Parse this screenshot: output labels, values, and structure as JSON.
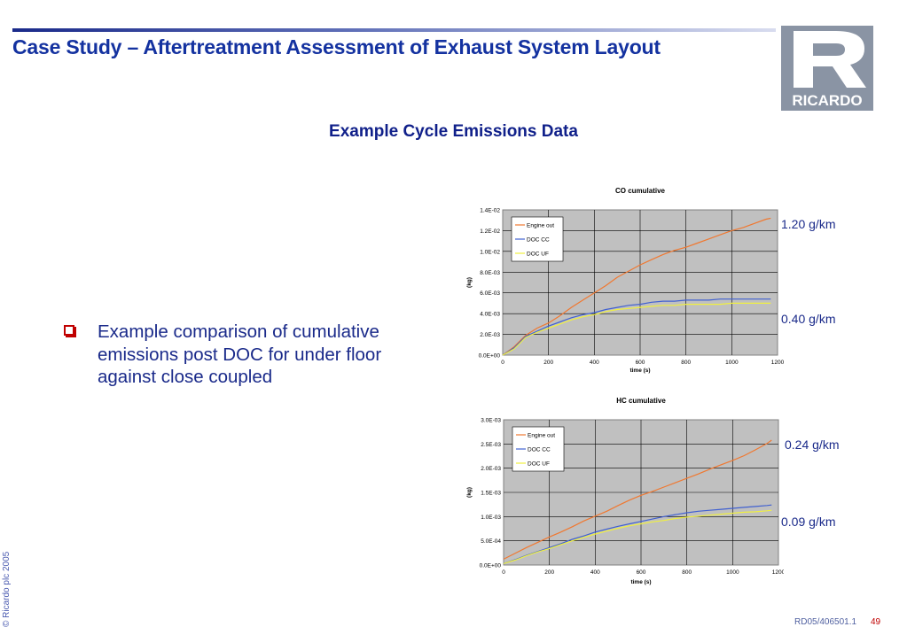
{
  "slide": {
    "title": "Case Study – Aftertreatment Assessment of Exhaust System Layout",
    "subtitle": "Example Cycle Emissions Data",
    "logo_text": "RICARDO",
    "bullet": "Example comparison of cumulative emissions post DOC for under floor against close coupled",
    "copyright": "© Ricardo plc 2005",
    "footer_ref": "RD05/406501.1",
    "page_number": "49"
  },
  "annotations": {
    "co_engine_out": "1.20 g/km",
    "co_doc": "0.40 g/km",
    "hc_engine_out": "0.24 g/km",
    "hc_doc": "0.09 g/km"
  },
  "colors": {
    "engine_out": "#f07830",
    "doc_cc": "#4060d0",
    "doc_uf": "#f0f040",
    "plot_bg": "#c0c0c0",
    "title_blue": "#1432a0",
    "bullet_red": "#c00000"
  },
  "chart_data": [
    {
      "type": "line",
      "title": "CO cumulative",
      "xlabel": "time (s)",
      "ylabel": "(kg)",
      "xlim": [
        0,
        1200
      ],
      "ylim": [
        0,
        0.014
      ],
      "x_ticks": [
        "0",
        "200",
        "400",
        "600",
        "800",
        "1000",
        "1200"
      ],
      "y_ticks": [
        "0.0E+00",
        "2.0E-03",
        "4.0E-03",
        "6.0E-03",
        "8.0E-03",
        "1.0E-02",
        "1.2E-02",
        "1.4E-02"
      ],
      "grid": true,
      "legend": "top-left",
      "series": [
        {
          "name": "Engine out",
          "x": [
            0,
            50,
            100,
            150,
            200,
            250,
            300,
            350,
            400,
            450,
            500,
            550,
            600,
            650,
            700,
            750,
            800,
            850,
            900,
            950,
            1000,
            1050,
            1100,
            1150,
            1170
          ],
          "y": [
            0,
            0.0008,
            0.0019,
            0.0026,
            0.0031,
            0.0038,
            0.0046,
            0.0053,
            0.006,
            0.0067,
            0.0075,
            0.0081,
            0.0087,
            0.0092,
            0.0097,
            0.0101,
            0.0104,
            0.0108,
            0.0112,
            0.0116,
            0.012,
            0.0123,
            0.0127,
            0.0131,
            0.0132
          ]
        },
        {
          "name": "DOC CC",
          "x": [
            0,
            50,
            100,
            150,
            200,
            250,
            300,
            350,
            400,
            450,
            500,
            550,
            600,
            650,
            700,
            750,
            800,
            850,
            900,
            950,
            1000,
            1050,
            1100,
            1150,
            1170
          ],
          "y": [
            0,
            0.0007,
            0.0018,
            0.0023,
            0.0028,
            0.0032,
            0.0036,
            0.0039,
            0.0041,
            0.0044,
            0.0046,
            0.0048,
            0.0049,
            0.0051,
            0.0052,
            0.0052,
            0.0053,
            0.0053,
            0.0053,
            0.0054,
            0.0054,
            0.0054,
            0.0054,
            0.0054,
            0.0054
          ]
        },
        {
          "name": "DOC UF",
          "x": [
            0,
            50,
            100,
            150,
            200,
            250,
            300,
            350,
            400,
            450,
            500,
            550,
            600,
            650,
            700,
            750,
            800,
            850,
            900,
            950,
            1000,
            1050,
            1100,
            1150,
            1170
          ],
          "y": [
            0,
            0.0006,
            0.0017,
            0.0022,
            0.0026,
            0.003,
            0.0034,
            0.0037,
            0.0039,
            0.0042,
            0.0044,
            0.0045,
            0.0046,
            0.0047,
            0.0048,
            0.0048,
            0.0049,
            0.0049,
            0.0049,
            0.0049,
            0.005,
            0.005,
            0.005,
            0.005,
            0.005
          ]
        }
      ]
    },
    {
      "type": "line",
      "title": "HC cumulative",
      "xlabel": "time (s)",
      "ylabel": "(kg)",
      "xlim": [
        0,
        1200
      ],
      "ylim": [
        0,
        0.003
      ],
      "x_ticks": [
        "0",
        "200",
        "400",
        "600",
        "800",
        "1000",
        "1200"
      ],
      "y_ticks": [
        "0.0E+00",
        "5.0E-04",
        "1.0E-03",
        "1.5E-03",
        "2.0E-03",
        "2.5E-03",
        "3.0E-03"
      ],
      "grid": true,
      "legend": "top-left",
      "series": [
        {
          "name": "Engine out",
          "x": [
            0,
            50,
            100,
            150,
            200,
            250,
            300,
            350,
            400,
            450,
            500,
            550,
            600,
            650,
            700,
            750,
            800,
            850,
            900,
            950,
            1000,
            1050,
            1100,
            1150,
            1170
          ],
          "y": [
            0.00012,
            0.00024,
            0.00036,
            0.00047,
            0.00058,
            0.00068,
            0.00079,
            0.00091,
            0.00101,
            0.00111,
            0.00123,
            0.00134,
            0.00144,
            0.00152,
            0.00161,
            0.0017,
            0.00179,
            0.00188,
            0.00198,
            0.00207,
            0.00216,
            0.00226,
            0.00238,
            0.00251,
            0.00258
          ]
        },
        {
          "name": "DOC CC",
          "x": [
            0,
            50,
            100,
            150,
            200,
            250,
            300,
            350,
            400,
            450,
            500,
            550,
            600,
            650,
            700,
            750,
            800,
            850,
            900,
            950,
            1000,
            1050,
            1100,
            1150,
            1170
          ],
          "y": [
            3e-05,
            0.00011,
            0.0002,
            0.00028,
            0.00036,
            0.00044,
            0.00053,
            0.0006,
            0.00068,
            0.00074,
            0.0008,
            0.00085,
            0.0009,
            0.00095,
            0.001,
            0.00104,
            0.00108,
            0.00111,
            0.00113,
            0.00115,
            0.00117,
            0.00119,
            0.00121,
            0.00123,
            0.00124
          ]
        },
        {
          "name": "DOC UF",
          "x": [
            0,
            50,
            100,
            150,
            200,
            250,
            300,
            350,
            400,
            450,
            500,
            550,
            600,
            650,
            700,
            750,
            800,
            850,
            900,
            950,
            1000,
            1050,
            1100,
            1150,
            1170
          ],
          "y": [
            3e-05,
            0.0001,
            0.00019,
            0.00027,
            0.00034,
            0.00042,
            0.0005,
            0.00057,
            0.00064,
            0.0007,
            0.00076,
            0.00081,
            0.00085,
            0.00089,
            0.00092,
            0.00096,
            0.00099,
            0.00101,
            0.00103,
            0.00105,
            0.00107,
            0.00109,
            0.0011,
            0.00112,
            0.00113
          ]
        }
      ]
    }
  ]
}
